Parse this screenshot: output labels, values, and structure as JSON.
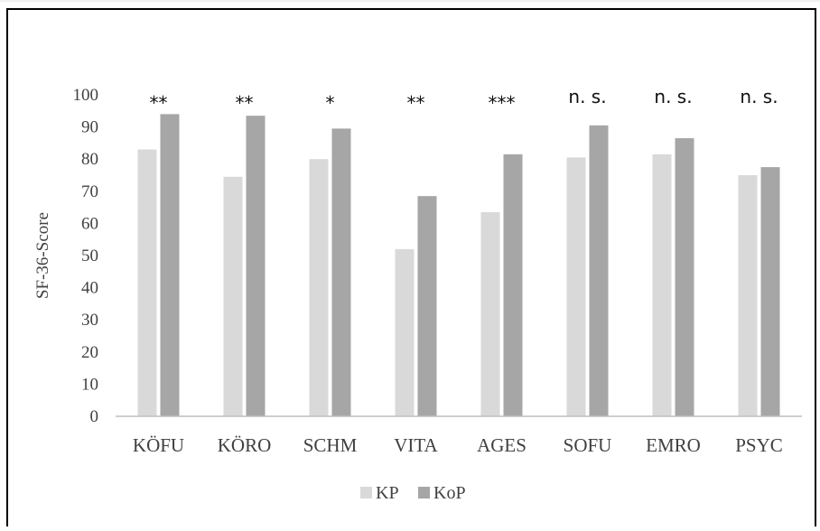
{
  "chart_data": {
    "type": "bar",
    "title": "",
    "xlabel": "",
    "ylabel": "SF-36-Score",
    "ylim": [
      0,
      100
    ],
    "yticks": [
      0,
      10,
      20,
      30,
      40,
      50,
      60,
      70,
      80,
      90,
      100
    ],
    "categories": [
      "KÖFU",
      "KÖRO",
      "SCHM",
      "VITA",
      "AGES",
      "SOFU",
      "EMRO",
      "PSYC"
    ],
    "series": [
      {
        "name": "KP",
        "color": "#d9d9d9",
        "values": [
          83,
          74.5,
          80,
          52,
          63.5,
          80.5,
          81.5,
          75
        ]
      },
      {
        "name": "KoP",
        "color": "#a6a6a6",
        "values": [
          94,
          93.5,
          89.5,
          68.5,
          81.5,
          90.5,
          86.5,
          77.5
        ]
      }
    ],
    "annotations": [
      "**",
      "**",
      "*",
      "**",
      "***",
      "n. s.",
      "n. s.",
      "n. s."
    ],
    "grid": false,
    "legend_position": "bottom"
  }
}
